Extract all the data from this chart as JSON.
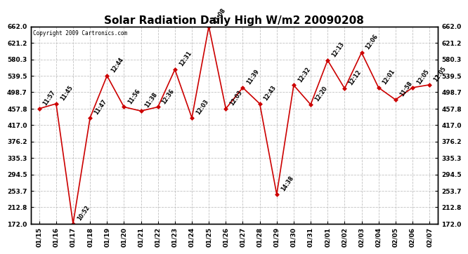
{
  "title": "Solar Radiation Daily High W/m2 20090208",
  "copyright": "Copyright 2009 Cartronics.com",
  "dates": [
    "01/15",
    "01/16",
    "01/17",
    "01/18",
    "01/19",
    "01/20",
    "01/21",
    "01/22",
    "01/23",
    "01/24",
    "01/25",
    "01/26",
    "01/27",
    "01/28",
    "01/29",
    "01/30",
    "01/31",
    "02/01",
    "02/02",
    "02/03",
    "02/04",
    "02/05",
    "02/06",
    "02/07"
  ],
  "values": [
    457.8,
    470.0,
    172.0,
    435.0,
    539.5,
    462.0,
    452.0,
    462.0,
    555.0,
    435.0,
    662.0,
    457.8,
    510.0,
    470.0,
    245.0,
    516.0,
    468.0,
    578.0,
    508.0,
    597.0,
    510.0,
    480.0,
    510.0,
    517.0
  ],
  "time_labels": [
    "11:57",
    "11:45",
    "10:52",
    "11:47",
    "12:44",
    "11:56",
    "11:38",
    "12:36",
    "12:31",
    "12:03",
    "11:08",
    "12:03",
    "11:39",
    "12:43",
    "14:38",
    "12:32",
    "12:20",
    "12:13",
    "12:12",
    "12:06",
    "12:01",
    "11:58",
    "12:05",
    "12:05"
  ],
  "yticks": [
    172.0,
    212.8,
    253.7,
    294.5,
    335.3,
    376.2,
    417.0,
    457.8,
    498.7,
    539.5,
    580.3,
    621.2,
    662.0
  ],
  "line_color": "#cc0000",
  "marker_color": "#cc0000",
  "background_color": "#ffffff",
  "grid_color": "#bbbbbb",
  "title_fontsize": 11,
  "label_fontsize": 6.5,
  "tick_fontsize": 6.5,
  "ylim": [
    172.0,
    662.0
  ]
}
